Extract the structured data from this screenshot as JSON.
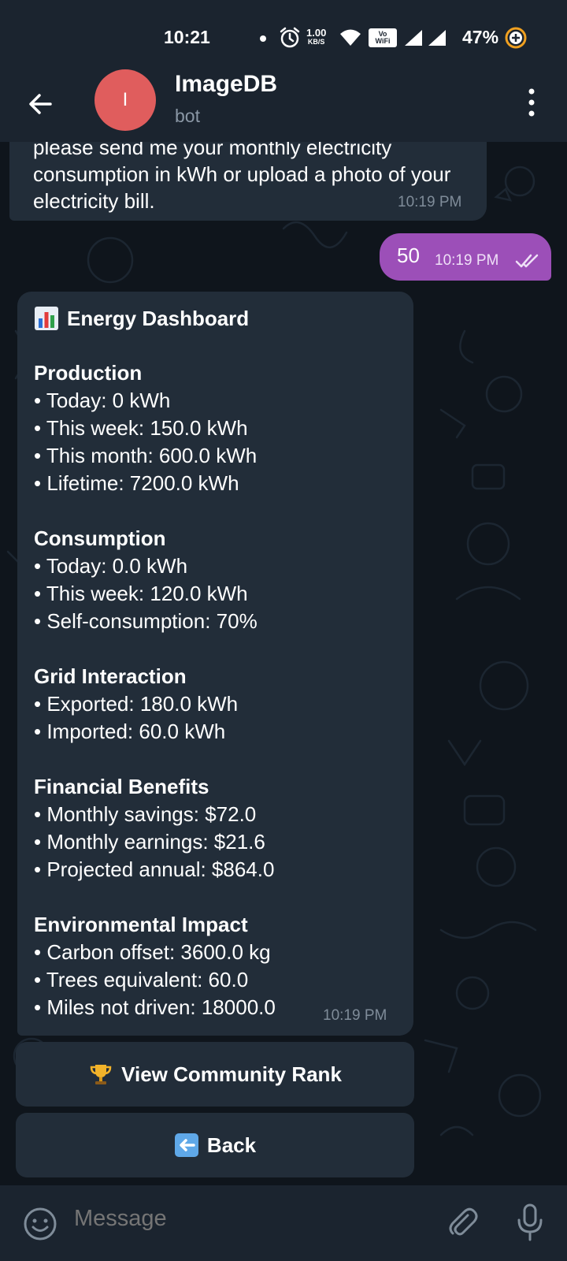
{
  "status_bar": {
    "time": "10:21",
    "net_speed_value": "1.00",
    "net_speed_unit": "KB/S",
    "vowifi_top": "Vo",
    "vowifi_bottom": "WiFi",
    "battery": "47%"
  },
  "header": {
    "avatar_letter": "I",
    "title": "ImageDB",
    "subtitle": "bot"
  },
  "messages": {
    "previous": {
      "text": "please send me your monthly electricity consumption in kWh or upload a photo of your electricity bill.",
      "time": "10:19 PM"
    },
    "sent": {
      "text": "50",
      "time": "10:19 PM"
    },
    "dashboard": {
      "title": "Energy Dashboard",
      "time": "10:19 PM",
      "sections": [
        {
          "heading": "Production",
          "items": [
            "• Today: 0 kWh",
            "• This week: 150.0 kWh",
            "• This month: 600.0 kWh",
            "• Lifetime: 7200.0 kWh"
          ]
        },
        {
          "heading": "Consumption",
          "items": [
            "• Today: 0.0 kWh",
            "• This week: 120.0 kWh",
            "• Self-consumption: 70%"
          ]
        },
        {
          "heading": "Grid Interaction",
          "items": [
            "• Exported: 180.0 kWh",
            "• Imported: 60.0 kWh"
          ]
        },
        {
          "heading": "Financial Benefits",
          "items": [
            "• Monthly savings: $72.0",
            "• Monthly earnings: $21.6",
            "• Projected annual: $864.0"
          ]
        },
        {
          "heading": "Environmental Impact",
          "items": [
            "• Carbon offset: 3600.0 kg",
            "• Trees equivalent: 60.0",
            "• Miles not driven: 18000.0"
          ]
        }
      ]
    }
  },
  "keyboard": {
    "community_rank": "View Community Rank",
    "back": "Back"
  },
  "composer": {
    "placeholder": "Message"
  },
  "colors": {
    "background": "#0f151c",
    "bar": "#1b242f",
    "incoming_bubble": "#222d39",
    "outgoing_bubble": "#9c4fb8",
    "avatar": "#e05d5d"
  }
}
